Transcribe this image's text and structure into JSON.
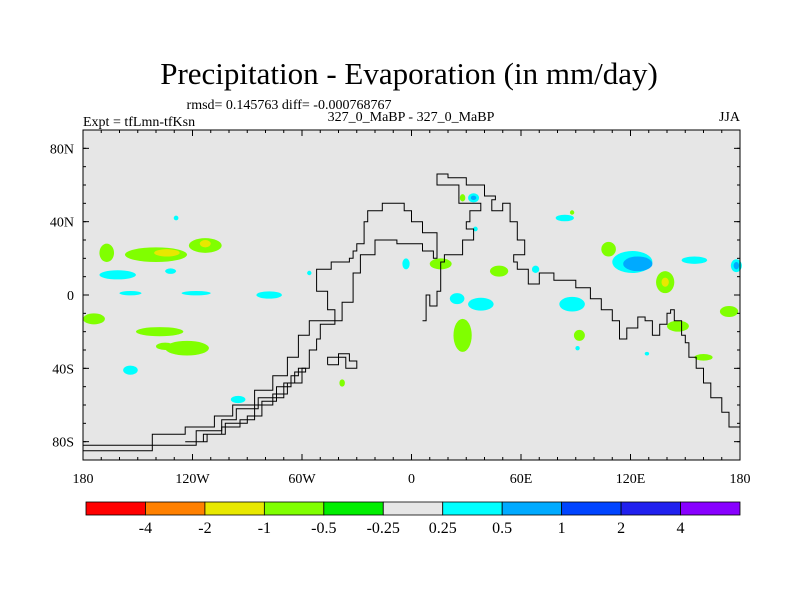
{
  "chart_data": {
    "type": "heatmap",
    "title": "Precipitation - Evaporation (in mm/day)",
    "stats_text": "rmsd= 0.145763  diff= -0.000768767",
    "left_label": "Expt = tfLmn-tfKsn",
    "center_label": "327_0_MaBP - 327_0_MaBP",
    "right_label": "JJA",
    "x_axis": {
      "range": [
        -180,
        180
      ],
      "ticks": [
        {
          "value": -180,
          "label": "180"
        },
        {
          "value": -120,
          "label": "120W"
        },
        {
          "value": -60,
          "label": "60W"
        },
        {
          "value": 0,
          "label": "0"
        },
        {
          "value": 60,
          "label": "60E"
        },
        {
          "value": 120,
          "label": "120E"
        },
        {
          "value": 180,
          "label": "180"
        }
      ]
    },
    "y_axis": {
      "range": [
        -90,
        90
      ],
      "ticks": [
        {
          "value": 80,
          "label": "80N"
        },
        {
          "value": 40,
          "label": "40N"
        },
        {
          "value": 0,
          "label": "0"
        },
        {
          "value": -40,
          "label": "40S"
        },
        {
          "value": -80,
          "label": "80S"
        }
      ]
    },
    "colorbar": {
      "labels": [
        "-4",
        "-2",
        "-1",
        "-0.5",
        "-0.25",
        "0.25",
        "0.5",
        "1",
        "2",
        "4"
      ],
      "colors": [
        "#ff0000",
        "#ff8000",
        "#e8e800",
        "#80ff00",
        "#00ee00",
        "#e6e6e6",
        "#00ffff",
        "#00aaff",
        "#0044ff",
        "#2020ee",
        "#8800ff"
      ]
    },
    "background_color": "#e6e6e6",
    "anomaly_regions": [
      {
        "lon": -167,
        "lat": 23,
        "rx": 4,
        "ry": 5,
        "bin": -0.5
      },
      {
        "lon": -161,
        "lat": 11,
        "rx": 10,
        "ry": 2.5,
        "bin": 0.25
      },
      {
        "lon": -140,
        "lat": 22,
        "rx": 17,
        "ry": 4,
        "bin": -0.5
      },
      {
        "lon": -134,
        "lat": 23,
        "rx": 7,
        "ry": 2,
        "bin": -1
      },
      {
        "lon": -113,
        "lat": 27,
        "rx": 9,
        "ry": 4,
        "bin": -0.5
      },
      {
        "lon": -113,
        "lat": 28,
        "rx": 3,
        "ry": 2,
        "bin": -1
      },
      {
        "lon": -132,
        "lat": 13,
        "rx": 3,
        "ry": 1.5,
        "bin": 0.25
      },
      {
        "lon": -174,
        "lat": -13,
        "rx": 6,
        "ry": 3,
        "bin": -0.5
      },
      {
        "lon": -138,
        "lat": -20,
        "rx": 13,
        "ry": 2.5,
        "bin": -0.5
      },
      {
        "lon": -123,
        "lat": -29,
        "rx": 12,
        "ry": 4,
        "bin": -0.5
      },
      {
        "lon": -135,
        "lat": -28,
        "rx": 5,
        "ry": 2,
        "bin": -0.5
      },
      {
        "lon": -154,
        "lat": -41,
        "rx": 4,
        "ry": 2.5,
        "bin": 0.25
      },
      {
        "lon": -129,
        "lat": 42,
        "rx": 1.3,
        "ry": 1.3,
        "bin": 0.25
      },
      {
        "lon": -154,
        "lat": 1,
        "rx": 6,
        "ry": 1.2,
        "bin": 0.25
      },
      {
        "lon": -118,
        "lat": 1,
        "rx": 8,
        "ry": 1.2,
        "bin": 0.25
      },
      {
        "lon": -78,
        "lat": 0,
        "rx": 7,
        "ry": 2,
        "bin": 0.25
      },
      {
        "lon": -95,
        "lat": -57,
        "rx": 4,
        "ry": 2,
        "bin": 0.25
      },
      {
        "lon": -38,
        "lat": -48,
        "rx": 1.5,
        "ry": 2,
        "bin": -0.5
      },
      {
        "lon": -56,
        "lat": 12,
        "rx": 1.2,
        "ry": 1.2,
        "bin": 0.25
      },
      {
        "lon": 34,
        "lat": 53,
        "rx": 3,
        "ry": 2.5,
        "bin": 0.25
      },
      {
        "lon": 34,
        "lat": 53,
        "rx": 1.5,
        "ry": 1.2,
        "bin": 0.5
      },
      {
        "lon": 28,
        "lat": 53,
        "rx": 1.5,
        "ry": 2,
        "bin": -0.5
      },
      {
        "lon": 35,
        "lat": 36,
        "rx": 1.3,
        "ry": 1.3,
        "bin": 0.25
      },
      {
        "lon": 84,
        "lat": 42,
        "rx": 5,
        "ry": 1.8,
        "bin": 0.25
      },
      {
        "lon": 88,
        "lat": 45,
        "rx": 1.2,
        "ry": 1.2,
        "bin": -0.5
      },
      {
        "lon": -3,
        "lat": 17,
        "rx": 2,
        "ry": 3,
        "bin": 0.25
      },
      {
        "lon": 16,
        "lat": 17,
        "rx": 6,
        "ry": 3,
        "bin": -0.5
      },
      {
        "lon": 48,
        "lat": 13,
        "rx": 5,
        "ry": 3,
        "bin": -0.5
      },
      {
        "lon": 68,
        "lat": 14,
        "rx": 2,
        "ry": 2,
        "bin": 0.25
      },
      {
        "lon": 25,
        "lat": -2,
        "rx": 4,
        "ry": 3,
        "bin": 0.25
      },
      {
        "lon": 38,
        "lat": -5,
        "rx": 7,
        "ry": 3.5,
        "bin": 0.25
      },
      {
        "lon": 28,
        "lat": -22,
        "rx": 5,
        "ry": 9,
        "bin": -0.5
      },
      {
        "lon": 88,
        "lat": -5,
        "rx": 7,
        "ry": 4,
        "bin": 0.25
      },
      {
        "lon": 92,
        "lat": -22,
        "rx": 3,
        "ry": 3,
        "bin": -0.5
      },
      {
        "lon": 91,
        "lat": -29,
        "rx": 1.2,
        "ry": 1.2,
        "bin": 0.25
      },
      {
        "lon": 108,
        "lat": 25,
        "rx": 4,
        "ry": 4,
        "bin": -0.5
      },
      {
        "lon": 121,
        "lat": 18,
        "rx": 11,
        "ry": 6,
        "bin": 0.25
      },
      {
        "lon": 124,
        "lat": 17,
        "rx": 8,
        "ry": 4,
        "bin": 0.5
      },
      {
        "lon": 139,
        "lat": 7,
        "rx": 5,
        "ry": 6,
        "bin": -0.5
      },
      {
        "lon": 139,
        "lat": 7,
        "rx": 2,
        "ry": 2.5,
        "bin": -1
      },
      {
        "lon": 155,
        "lat": 19,
        "rx": 7,
        "ry": 2,
        "bin": 0.25
      },
      {
        "lon": 178,
        "lat": 16,
        "rx": 3,
        "ry": 3.5,
        "bin": 0.25
      },
      {
        "lon": 178,
        "lat": 16,
        "rx": 1.5,
        "ry": 2,
        "bin": 0.5
      },
      {
        "lon": 146,
        "lat": -17,
        "rx": 6,
        "ry": 3,
        "bin": -0.5
      },
      {
        "lon": 174,
        "lat": -9,
        "rx": 5,
        "ry": 3,
        "bin": -0.5
      },
      {
        "lon": 160,
        "lat": -34,
        "rx": 5,
        "ry": 1.8,
        "bin": -0.5
      },
      {
        "lon": 129,
        "lat": -32,
        "rx": 1.2,
        "ry": 1,
        "bin": 0.25
      }
    ],
    "land_outlines": [
      [
        [
          -180,
          -85
        ],
        [
          -142,
          -85
        ],
        [
          -142,
          -76
        ],
        [
          -124,
          -76
        ],
        [
          -124,
          -72
        ],
        [
          -108,
          -72
        ],
        [
          -108,
          -66
        ],
        [
          -98,
          -66
        ],
        [
          -98,
          -60
        ],
        [
          -86,
          -60
        ],
        [
          -86,
          -52
        ],
        [
          -76,
          -52
        ],
        [
          -76,
          -44
        ],
        [
          -68,
          -44
        ],
        [
          -68,
          -34
        ],
        [
          -62,
          -34
        ],
        [
          -62,
          -22
        ],
        [
          -56,
          -22
        ],
        [
          -56,
          -14
        ],
        [
          -38,
          -14
        ],
        [
          -38,
          -4
        ],
        [
          -32,
          -4
        ],
        [
          -32,
          12
        ],
        [
          -28,
          12
        ],
        [
          -28,
          22
        ],
        [
          -20,
          22
        ],
        [
          -20,
          30
        ],
        [
          -8,
          30
        ],
        [
          -8,
          28
        ],
        [
          6,
          28
        ],
        [
          6,
          24
        ],
        [
          12,
          24
        ],
        [
          12,
          20
        ],
        [
          14,
          20
        ],
        [
          14,
          34
        ],
        [
          6,
          34
        ],
        [
          6,
          40
        ],
        [
          0,
          40
        ],
        [
          0,
          46
        ],
        [
          -4,
          46
        ],
        [
          -4,
          50
        ],
        [
          -16,
          50
        ],
        [
          -16,
          46
        ],
        [
          -24,
          46
        ],
        [
          -24,
          40
        ],
        [
          -26,
          40
        ],
        [
          -26,
          28
        ],
        [
          -30,
          28
        ],
        [
          -30,
          24
        ],
        [
          -32,
          24
        ],
        [
          -32,
          20
        ],
        [
          -34,
          20
        ],
        [
          -34,
          18
        ],
        [
          -44,
          18
        ],
        [
          -44,
          14
        ],
        [
          -52,
          14
        ],
        [
          -52,
          2
        ],
        [
          -46,
          2
        ],
        [
          -46,
          -8
        ],
        [
          -42,
          -8
        ],
        [
          -42,
          -16
        ],
        [
          -50,
          -16
        ],
        [
          -50,
          -24
        ],
        [
          -52,
          -24
        ],
        [
          -52,
          -30
        ],
        [
          -56,
          -30
        ],
        [
          -56,
          -40
        ],
        [
          -60,
          -40
        ],
        [
          -60,
          -48
        ],
        [
          -70,
          -48
        ],
        [
          -70,
          -56
        ],
        [
          -84,
          -56
        ],
        [
          -84,
          -62
        ],
        [
          -96,
          -62
        ],
        [
          -96,
          -68
        ],
        [
          -104,
          -68
        ],
        [
          -104,
          -74
        ],
        [
          -118,
          -74
        ],
        [
          -118,
          -82
        ],
        [
          -180,
          -82
        ]
      ],
      [
        [
          -124,
          -80
        ],
        [
          -112,
          -80
        ],
        [
          -112,
          -76
        ],
        [
          -102,
          -76
        ],
        [
          -102,
          -70
        ],
        [
          -90,
          -70
        ],
        [
          -90,
          -66
        ],
        [
          -82,
          -66
        ],
        [
          -82,
          -58
        ],
        [
          -74,
          -58
        ],
        [
          -74,
          -50
        ],
        [
          -66,
          -50
        ],
        [
          -66,
          -44
        ],
        [
          -62,
          -44
        ],
        [
          -62,
          -40
        ],
        [
          -58,
          -40
        ],
        [
          -58,
          -42
        ],
        [
          -64,
          -42
        ],
        [
          -64,
          -48
        ],
        [
          -68,
          -48
        ],
        [
          -68,
          -54
        ],
        [
          -76,
          -54
        ],
        [
          -76,
          -60
        ],
        [
          -86,
          -60
        ],
        [
          -86,
          -68
        ],
        [
          -94,
          -68
        ],
        [
          -94,
          -72
        ],
        [
          -104,
          -72
        ],
        [
          -104,
          -76
        ],
        [
          -114,
          -76
        ],
        [
          -114,
          -80
        ],
        [
          -124,
          -80
        ]
      ],
      [
        [
          -46,
          -38
        ],
        [
          -40,
          -38
        ],
        [
          -40,
          -34
        ],
        [
          -36,
          -34
        ],
        [
          -36,
          -40
        ],
        [
          -30,
          -40
        ],
        [
          -30,
          -36
        ],
        [
          -34,
          -36
        ],
        [
          -34,
          -32
        ],
        [
          -40,
          -32
        ],
        [
          -40,
          -34
        ],
        [
          -46,
          -34
        ],
        [
          -46,
          -38
        ]
      ],
      [
        [
          6,
          -14
        ],
        [
          8,
          -14
        ],
        [
          8,
          0
        ],
        [
          10,
          0
        ],
        [
          10,
          -6
        ],
        [
          14,
          -6
        ],
        [
          14,
          2
        ],
        [
          16,
          2
        ],
        [
          16,
          18
        ],
        [
          18,
          18
        ],
        [
          18,
          22
        ],
        [
          28,
          22
        ],
        [
          28,
          30
        ],
        [
          34,
          30
        ],
        [
          34,
          36
        ],
        [
          30,
          36
        ],
        [
          30,
          40
        ],
        [
          32,
          40
        ],
        [
          32,
          46
        ],
        [
          38,
          46
        ],
        [
          38,
          50
        ],
        [
          26,
          50
        ],
        [
          26,
          60
        ],
        [
          14,
          60
        ],
        [
          14,
          66
        ],
        [
          20,
          66
        ],
        [
          20,
          64
        ],
        [
          30,
          64
        ],
        [
          30,
          60
        ],
        [
          40,
          60
        ],
        [
          40,
          54
        ],
        [
          46,
          54
        ],
        [
          46,
          52
        ],
        [
          44,
          52
        ],
        [
          44,
          46
        ],
        [
          50,
          46
        ],
        [
          50,
          50
        ],
        [
          54,
          50
        ],
        [
          54,
          40
        ],
        [
          58,
          40
        ],
        [
          58,
          30
        ],
        [
          62,
          30
        ],
        [
          62,
          22
        ],
        [
          56,
          22
        ],
        [
          56,
          18
        ],
        [
          58,
          18
        ],
        [
          58,
          14
        ],
        [
          64,
          14
        ],
        [
          64,
          6
        ],
        [
          70,
          6
        ],
        [
          70,
          12
        ],
        [
          78,
          12
        ],
        [
          78,
          8
        ],
        [
          90,
          8
        ],
        [
          90,
          4
        ],
        [
          98,
          4
        ],
        [
          98,
          -2
        ],
        [
          104,
          -2
        ],
        [
          104,
          -8
        ],
        [
          110,
          -8
        ],
        [
          110,
          -14
        ],
        [
          114,
          -14
        ],
        [
          114,
          -24
        ],
        [
          118,
          -24
        ],
        [
          118,
          -18
        ],
        [
          124,
          -18
        ],
        [
          124,
          -12
        ],
        [
          128,
          -12
        ],
        [
          128,
          -14
        ],
        [
          132,
          -14
        ],
        [
          132,
          -22
        ],
        [
          136,
          -22
        ],
        [
          136,
          -16
        ],
        [
          140,
          -16
        ],
        [
          140,
          -10
        ],
        [
          142,
          -10
        ],
        [
          142,
          -8
        ],
        [
          144,
          -8
        ],
        [
          144,
          -14
        ],
        [
          148,
          -14
        ],
        [
          148,
          -22
        ],
        [
          150,
          -22
        ],
        [
          150,
          -26
        ],
        [
          152,
          -26
        ],
        [
          152,
          -34
        ],
        [
          156,
          -34
        ],
        [
          156,
          -40
        ],
        [
          160,
          -40
        ],
        [
          160,
          -48
        ],
        [
          164,
          -48
        ],
        [
          164,
          -56
        ],
        [
          170,
          -56
        ],
        [
          170,
          -64
        ],
        [
          174,
          -64
        ],
        [
          174,
          -72
        ],
        [
          180,
          -72
        ],
        [
          180,
          -78
        ]
      ]
    ]
  }
}
